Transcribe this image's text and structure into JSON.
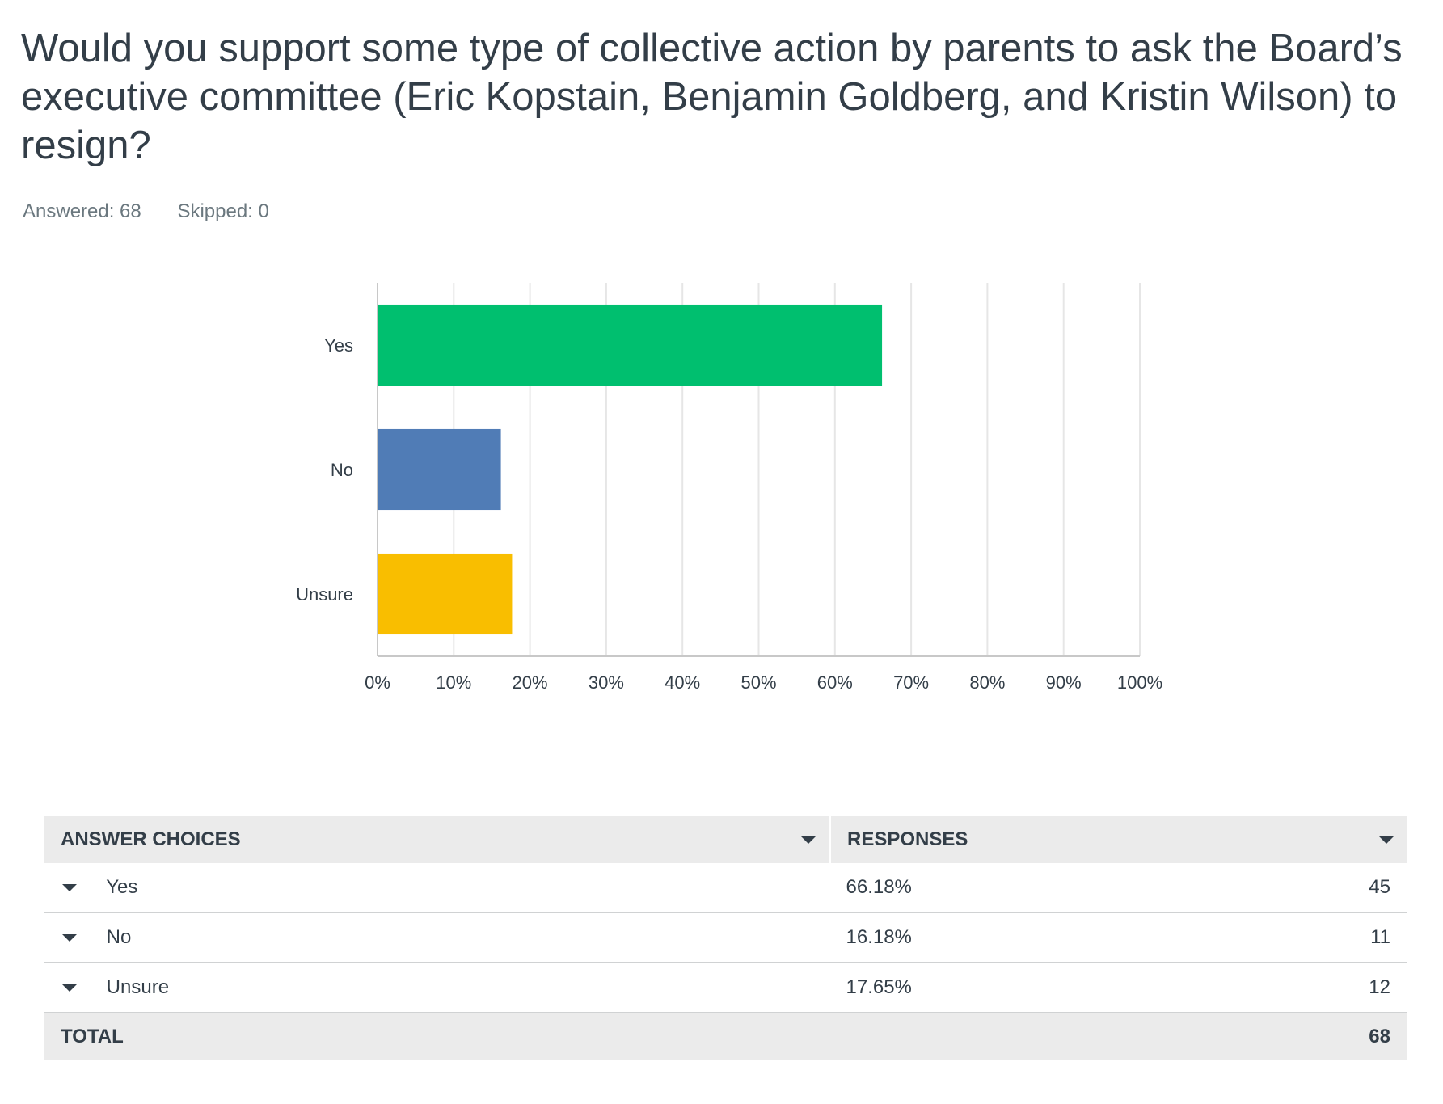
{
  "question": {
    "title": "Would you support some type of collective action by parents to ask the Board’s executive committee (Eric Kopstain, Benjamin Goldberg, and Kristin Wilson) to resign?",
    "answered": "Answered: 68",
    "skipped": "Skipped: 0"
  },
  "chart_data": {
    "type": "bar",
    "orientation": "horizontal",
    "categories": [
      "Yes",
      "No",
      "Unsure"
    ],
    "values": [
      66.18,
      16.18,
      17.65
    ],
    "colors": [
      "#00bf6f",
      "#507cb6",
      "#f9be00"
    ],
    "xlim": [
      0,
      100
    ],
    "ticks": [
      "0%",
      "10%",
      "20%",
      "30%",
      "40%",
      "50%",
      "60%",
      "70%",
      "80%",
      "90%",
      "100%"
    ],
    "grid": true,
    "title": "",
    "xlabel": "",
    "ylabel": ""
  },
  "table": {
    "headers": {
      "choices": "ANSWER CHOICES",
      "responses": "RESPONSES"
    },
    "rows": [
      {
        "choice": "Yes",
        "percent": "66.18%",
        "count": "45"
      },
      {
        "choice": "No",
        "percent": "16.18%",
        "count": "11"
      },
      {
        "choice": "Unsure",
        "percent": "17.65%",
        "count": "12"
      }
    ],
    "total": {
      "label": "TOTAL",
      "count": "68"
    }
  }
}
